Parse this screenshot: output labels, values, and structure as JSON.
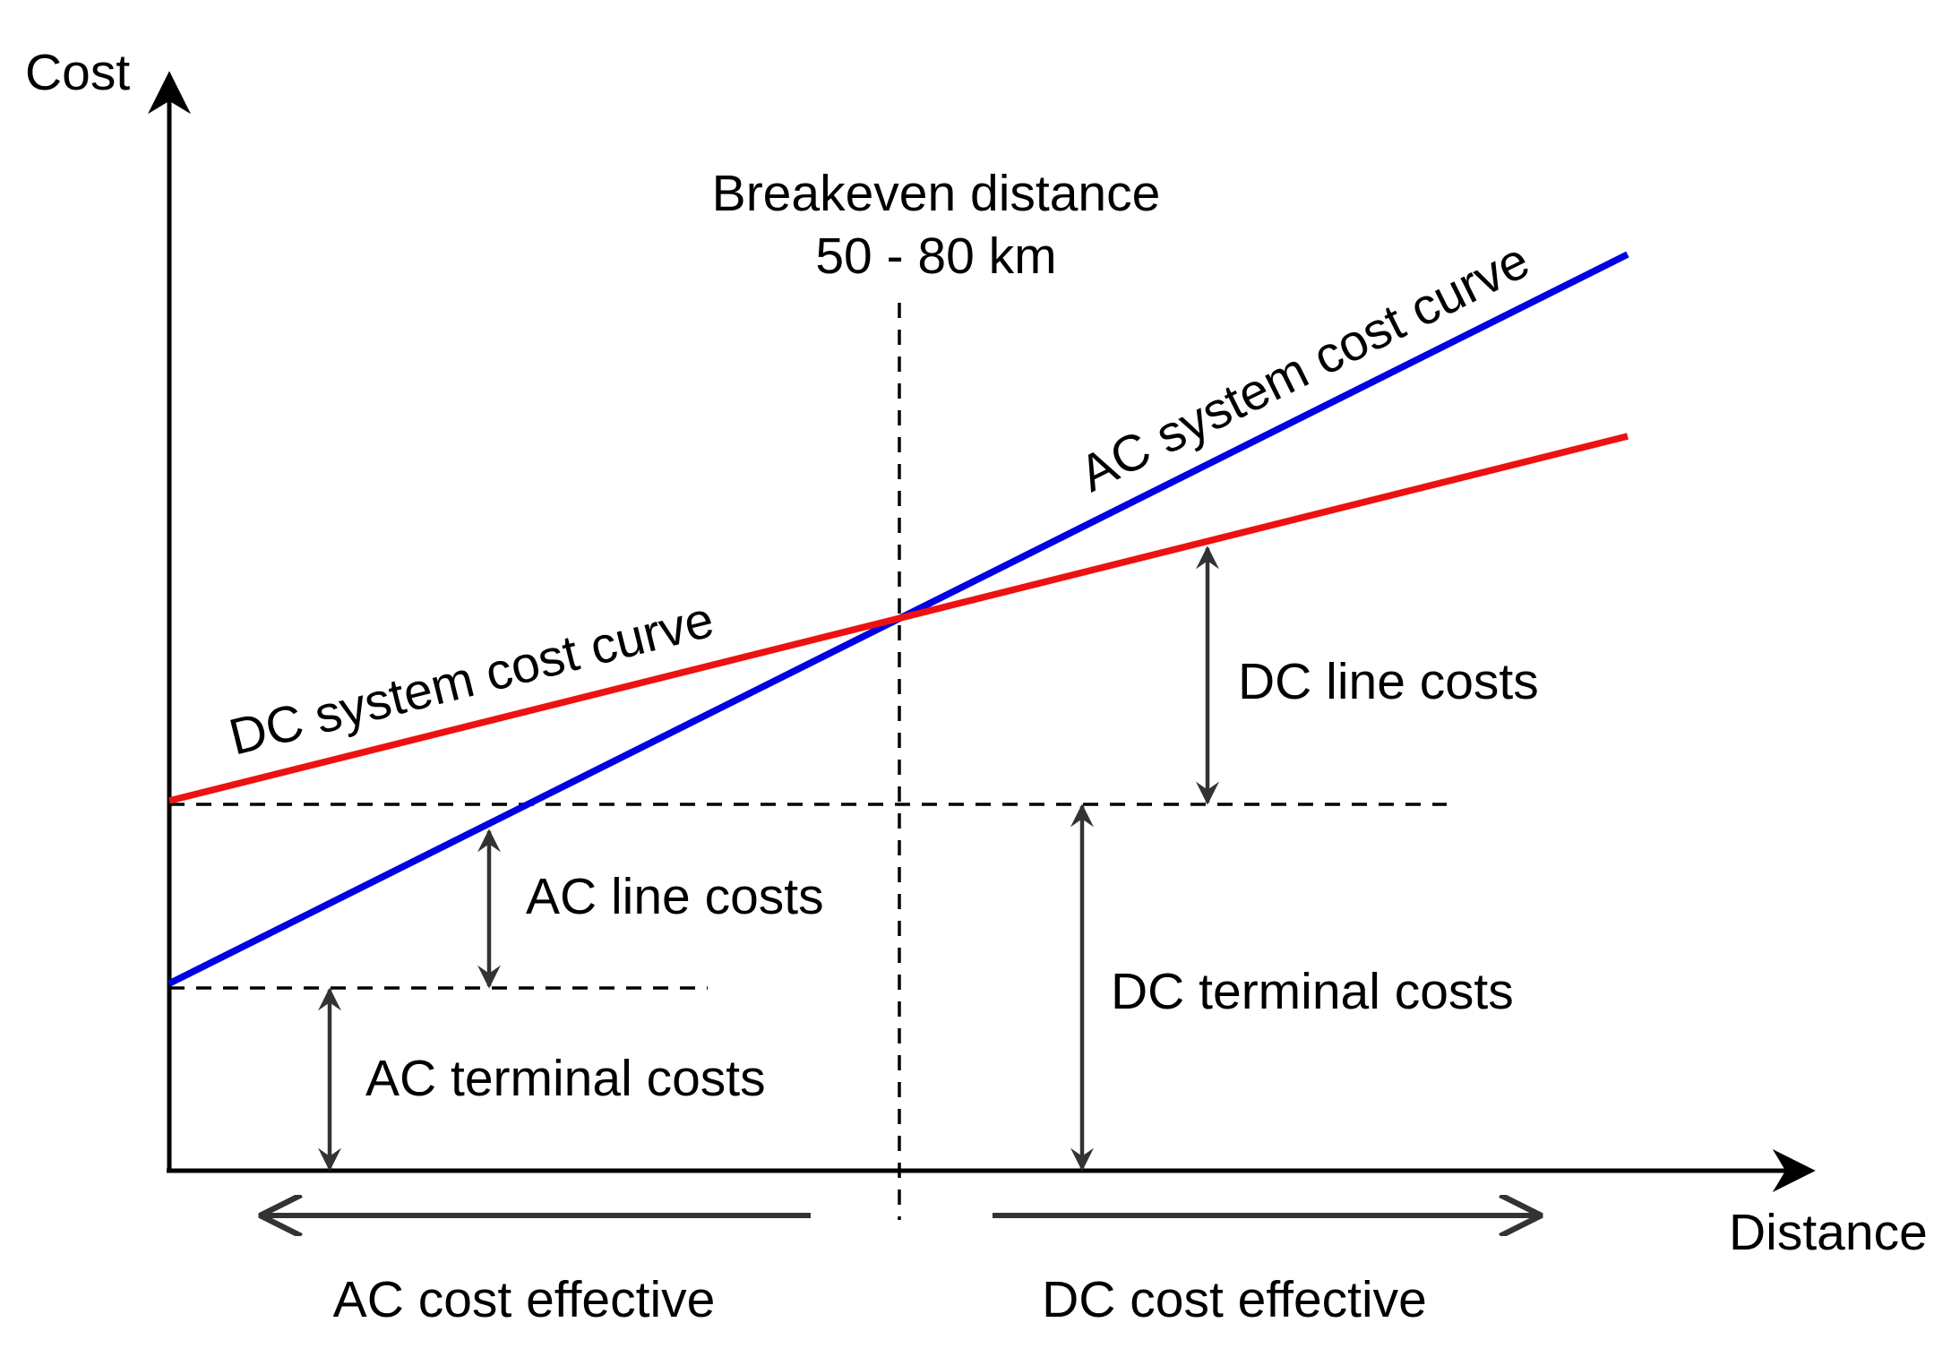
{
  "axes": {
    "y_label": "Cost",
    "x_label": "Distance"
  },
  "breakeven": {
    "line1": "Breakeven distance",
    "line2": "50 - 80 km"
  },
  "curves": {
    "ac": {
      "label": "AC system cost curve",
      "color": "#0000e6"
    },
    "dc": {
      "label": "DC system cost curve",
      "color": "#ee1111"
    }
  },
  "annotations": {
    "dc_line_costs": "DC line costs",
    "ac_line_costs": "AC line costs",
    "dc_terminal_costs": "DC terminal costs",
    "ac_terminal_costs": "AC terminal costs"
  },
  "regions": {
    "ac_effective": "AC cost effective",
    "dc_effective": "DC cost effective"
  }
}
